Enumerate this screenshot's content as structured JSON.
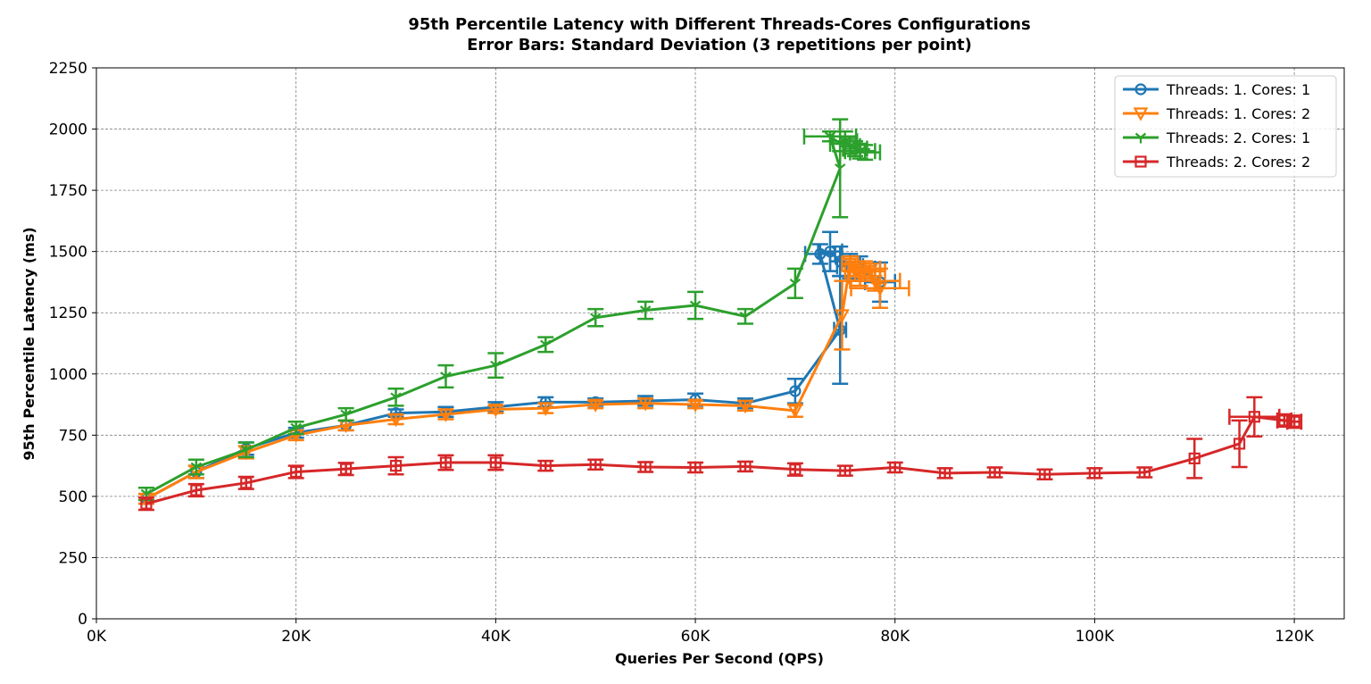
{
  "chart_data": {
    "type": "line",
    "title": "95th Percentile Latency with Different Threads-Cores Configurations",
    "subtitle": "Error Bars: Standard Deviation (3 repetitions per point)",
    "xlabel": "Queries Per Second (QPS)",
    "ylabel": "95th Percentile Latency (ms)",
    "xlim": [
      0,
      125000
    ],
    "ylim": [
      0,
      2250
    ],
    "xticks": [
      0,
      20000,
      40000,
      60000,
      80000,
      100000,
      120000
    ],
    "xtick_labels": [
      "0K",
      "20K",
      "40K",
      "60K",
      "80K",
      "100K",
      "120K"
    ],
    "yticks": [
      0,
      250,
      500,
      750,
      1000,
      1250,
      1500,
      1750,
      2000,
      2250
    ],
    "ytick_labels": [
      "0",
      "250",
      "500",
      "750",
      "1000",
      "1250",
      "1500",
      "1750",
      "2000",
      "2250"
    ],
    "grid": true,
    "legend_position": "top-right",
    "series": [
      {
        "name": "Threads: 1. Cores: 1",
        "color": "#1f77b4",
        "marker": "circle",
        "points": [
          {
            "x": 5000,
            "y": 490,
            "yerr": 20,
            "xerr": 0
          },
          {
            "x": 10000,
            "y": 600,
            "yerr": 25,
            "xerr": 0
          },
          {
            "x": 15000,
            "y": 695,
            "yerr": 25,
            "xerr": 0
          },
          {
            "x": 20000,
            "y": 760,
            "yerr": 20,
            "xerr": 0
          },
          {
            "x": 25000,
            "y": 790,
            "yerr": 20,
            "xerr": 0
          },
          {
            "x": 30000,
            "y": 840,
            "yerr": 15,
            "xerr": 0
          },
          {
            "x": 35000,
            "y": 845,
            "yerr": 20,
            "xerr": 0
          },
          {
            "x": 40000,
            "y": 865,
            "yerr": 20,
            "xerr": 0
          },
          {
            "x": 45000,
            "y": 885,
            "yerr": 20,
            "xerr": 0
          },
          {
            "x": 50000,
            "y": 885,
            "yerr": 15,
            "xerr": 0
          },
          {
            "x": 55000,
            "y": 890,
            "yerr": 20,
            "xerr": 0
          },
          {
            "x": 60000,
            "y": 895,
            "yerr": 25,
            "xerr": 0
          },
          {
            "x": 65000,
            "y": 880,
            "yerr": 20,
            "xerr": 0
          },
          {
            "x": 70000,
            "y": 930,
            "yerr": 50,
            "xerr": 0
          },
          {
            "x": 74500,
            "y": 1180,
            "yerr": 220,
            "xerr": 600
          },
          {
            "x": 72500,
            "y": 1490,
            "yerr": 40,
            "xerr": 1500
          },
          {
            "x": 73500,
            "y": 1500,
            "yerr": 80,
            "xerr": 1200
          },
          {
            "x": 74500,
            "y": 1460,
            "yerr": 60,
            "xerr": 1000
          },
          {
            "x": 75500,
            "y": 1440,
            "yerr": 50,
            "xerr": 1300
          },
          {
            "x": 76500,
            "y": 1430,
            "yerr": 50,
            "xerr": 1500
          },
          {
            "x": 78500,
            "y": 1375,
            "yerr": 80,
            "xerr": 1500
          }
        ]
      },
      {
        "name": "Threads: 1. Cores: 2",
        "color": "#ff7f0e",
        "marker": "triangle-down",
        "points": [
          {
            "x": 5000,
            "y": 490,
            "yerr": 20,
            "xerr": 0
          },
          {
            "x": 10000,
            "y": 600,
            "yerr": 25,
            "xerr": 0
          },
          {
            "x": 15000,
            "y": 680,
            "yerr": 25,
            "xerr": 0
          },
          {
            "x": 20000,
            "y": 750,
            "yerr": 20,
            "xerr": 0
          },
          {
            "x": 25000,
            "y": 790,
            "yerr": 20,
            "xerr": 0
          },
          {
            "x": 30000,
            "y": 815,
            "yerr": 20,
            "xerr": 0
          },
          {
            "x": 35000,
            "y": 835,
            "yerr": 20,
            "xerr": 0
          },
          {
            "x": 40000,
            "y": 855,
            "yerr": 15,
            "xerr": 0
          },
          {
            "x": 45000,
            "y": 860,
            "yerr": 20,
            "xerr": 0
          },
          {
            "x": 50000,
            "y": 875,
            "yerr": 15,
            "xerr": 0
          },
          {
            "x": 55000,
            "y": 880,
            "yerr": 20,
            "xerr": 0
          },
          {
            "x": 60000,
            "y": 875,
            "yerr": 15,
            "xerr": 0
          },
          {
            "x": 65000,
            "y": 870,
            "yerr": 20,
            "xerr": 0
          },
          {
            "x": 70000,
            "y": 850,
            "yerr": 25,
            "xerr": 0
          },
          {
            "x": 74700,
            "y": 1240,
            "yerr": 140,
            "xerr": 0
          },
          {
            "x": 75500,
            "y": 1450,
            "yerr": 30,
            "xerr": 800
          },
          {
            "x": 76000,
            "y": 1420,
            "yerr": 40,
            "xerr": 1000
          },
          {
            "x": 76500,
            "y": 1400,
            "yerr": 40,
            "xerr": 1200
          },
          {
            "x": 77000,
            "y": 1430,
            "yerr": 30,
            "xerr": 1500
          },
          {
            "x": 77500,
            "y": 1420,
            "yerr": 30,
            "xerr": 1500
          },
          {
            "x": 78000,
            "y": 1380,
            "yerr": 40,
            "xerr": 2500
          },
          {
            "x": 78500,
            "y": 1350,
            "yerr": 80,
            "xerr": 2900
          }
        ]
      },
      {
        "name": "Threads: 2. Cores: 1",
        "color": "#2ca02c",
        "marker": "tri-down",
        "points": [
          {
            "x": 5000,
            "y": 510,
            "yerr": 25,
            "xerr": 0
          },
          {
            "x": 10000,
            "y": 620,
            "yerr": 30,
            "xerr": 0
          },
          {
            "x": 15000,
            "y": 690,
            "yerr": 30,
            "xerr": 0
          },
          {
            "x": 20000,
            "y": 780,
            "yerr": 25,
            "xerr": 0
          },
          {
            "x": 25000,
            "y": 835,
            "yerr": 25,
            "xerr": 0
          },
          {
            "x": 30000,
            "y": 905,
            "yerr": 35,
            "xerr": 0
          },
          {
            "x": 35000,
            "y": 990,
            "yerr": 45,
            "xerr": 0
          },
          {
            "x": 40000,
            "y": 1035,
            "yerr": 50,
            "xerr": 0
          },
          {
            "x": 45000,
            "y": 1120,
            "yerr": 30,
            "xerr": 0
          },
          {
            "x": 50000,
            "y": 1230,
            "yerr": 35,
            "xerr": 0
          },
          {
            "x": 55000,
            "y": 1260,
            "yerr": 35,
            "xerr": 0
          },
          {
            "x": 60000,
            "y": 1280,
            "yerr": 55,
            "xerr": 0
          },
          {
            "x": 65000,
            "y": 1235,
            "yerr": 30,
            "xerr": 0
          },
          {
            "x": 70000,
            "y": 1370,
            "yerr": 60,
            "xerr": 0
          },
          {
            "x": 74500,
            "y": 1840,
            "yerr": 200,
            "xerr": 0
          },
          {
            "x": 73500,
            "y": 1970,
            "yerr": 20,
            "xerr": 2600
          },
          {
            "x": 74500,
            "y": 1940,
            "yerr": 30,
            "xerr": 1000
          },
          {
            "x": 75000,
            "y": 1950,
            "yerr": 40,
            "xerr": 1200
          },
          {
            "x": 75500,
            "y": 1930,
            "yerr": 30,
            "xerr": 1000
          },
          {
            "x": 76000,
            "y": 1920,
            "yerr": 30,
            "xerr": 1200
          },
          {
            "x": 76500,
            "y": 1910,
            "yerr": 30,
            "xerr": 1500
          },
          {
            "x": 77000,
            "y": 1905,
            "yerr": 30,
            "xerr": 1500
          }
        ]
      },
      {
        "name": "Threads: 2. Cores: 2",
        "color": "#d62728",
        "marker": "square",
        "points": [
          {
            "x": 5000,
            "y": 470,
            "yerr": 25,
            "xerr": 0
          },
          {
            "x": 10000,
            "y": 525,
            "yerr": 25,
            "xerr": 0
          },
          {
            "x": 15000,
            "y": 555,
            "yerr": 25,
            "xerr": 0
          },
          {
            "x": 20000,
            "y": 600,
            "yerr": 25,
            "xerr": 0
          },
          {
            "x": 25000,
            "y": 612,
            "yerr": 25,
            "xerr": 0
          },
          {
            "x": 30000,
            "y": 625,
            "yerr": 35,
            "xerr": 0
          },
          {
            "x": 35000,
            "y": 638,
            "yerr": 30,
            "xerr": 0
          },
          {
            "x": 40000,
            "y": 638,
            "yerr": 30,
            "xerr": 0
          },
          {
            "x": 45000,
            "y": 625,
            "yerr": 20,
            "xerr": 0
          },
          {
            "x": 50000,
            "y": 630,
            "yerr": 20,
            "xerr": 0
          },
          {
            "x": 55000,
            "y": 620,
            "yerr": 20,
            "xerr": 0
          },
          {
            "x": 60000,
            "y": 618,
            "yerr": 20,
            "xerr": 0
          },
          {
            "x": 65000,
            "y": 622,
            "yerr": 20,
            "xerr": 0
          },
          {
            "x": 70000,
            "y": 610,
            "yerr": 25,
            "xerr": 0
          },
          {
            "x": 75000,
            "y": 605,
            "yerr": 20,
            "xerr": 0
          },
          {
            "x": 80000,
            "y": 618,
            "yerr": 20,
            "xerr": 0
          },
          {
            "x": 85000,
            "y": 595,
            "yerr": 20,
            "xerr": 0
          },
          {
            "x": 90000,
            "y": 598,
            "yerr": 20,
            "xerr": 0
          },
          {
            "x": 95000,
            "y": 590,
            "yerr": 20,
            "xerr": 0
          },
          {
            "x": 100000,
            "y": 595,
            "yerr": 20,
            "xerr": 0
          },
          {
            "x": 105000,
            "y": 598,
            "yerr": 20,
            "xerr": 0
          },
          {
            "x": 110000,
            "y": 655,
            "yerr": 80,
            "xerr": 0
          },
          {
            "x": 114500,
            "y": 715,
            "yerr": 95,
            "xerr": 0
          },
          {
            "x": 116000,
            "y": 825,
            "yerr": 80,
            "xerr": 2500
          },
          {
            "x": 119000,
            "y": 810,
            "yerr": 25,
            "xerr": 700
          },
          {
            "x": 120000,
            "y": 805,
            "yerr": 25,
            "xerr": 700
          }
        ]
      }
    ]
  }
}
